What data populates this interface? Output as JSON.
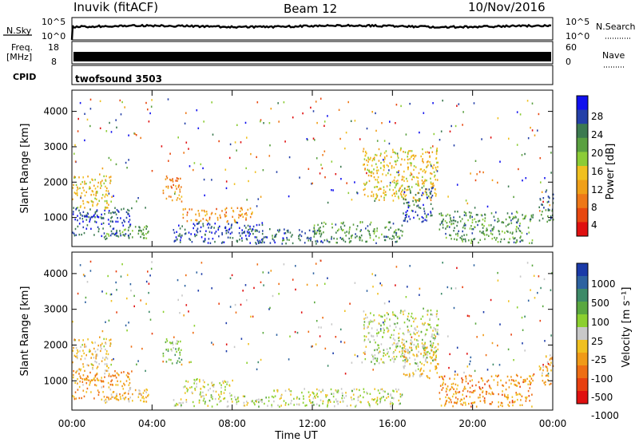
{
  "header": {
    "station": "Inuvik (fitACF)",
    "beam": "Beam 12",
    "date": "10/Nov/2016"
  },
  "strips": {
    "nsky_label": "N.Sky",
    "nsearch_label": "N.Search",
    "noise_ticks_left": [
      "10^5",
      "10^0"
    ],
    "noise_ticks_right": [
      "10^5",
      "10^0"
    ],
    "freq_label_line1": "Freq.",
    "freq_label_line2": "[MHz]",
    "freq_ticks": [
      "18",
      "8"
    ],
    "nave_label": "Nave",
    "nave_ticks": [
      "60",
      "0"
    ],
    "cpid_label": "CPID",
    "cpid_value": "twofsound 3503"
  },
  "colorbars": {
    "power": {
      "label": "Power [dB]",
      "ticks": [
        "28",
        "24",
        "20",
        "16",
        "12",
        "8",
        "4"
      ],
      "colors": [
        "#1010ee",
        "#2440a8",
        "#3c7a50",
        "#5aa040",
        "#8ccc36",
        "#f0c020",
        "#f0a018",
        "#ee7818",
        "#e84810",
        "#e01010"
      ]
    },
    "velocity": {
      "label": "Velocity [m s⁻¹]",
      "ticks": [
        "1000",
        "500",
        "100",
        "25",
        "-25",
        "-100",
        "-500",
        "-1000"
      ],
      "colors": [
        "#1a3aa8",
        "#2d62a0",
        "#3d8a68",
        "#5aa840",
        "#8cd030",
        "#c8c8c8",
        "#f0c020",
        "#f09a18",
        "#ee6e14",
        "#e84010",
        "#e01010"
      ]
    }
  },
  "chart_data": {
    "type": "heatmap",
    "title": "Inuvik (fitACF)  Beam 12  10/Nov/2016",
    "xlabel": "Time UT",
    "ylabel": "Slant Range [km]",
    "xlim": [
      0,
      24
    ],
    "ylim": [
      180,
      4600
    ],
    "x_ticks": [
      "00:00",
      "04:00",
      "08:00",
      "12:00",
      "16:00",
      "20:00",
      "00:00"
    ],
    "y_ticks": [
      "1000",
      "2000",
      "3000",
      "4000"
    ],
    "panels": [
      {
        "name": "Power [dB]",
        "range": [
          0,
          32
        ],
        "regions": [
          {
            "t": [
              0.0,
              3.0
            ],
            "r": [
              500,
              1300
            ],
            "v": 27
          },
          {
            "t": [
              0.0,
              2.0
            ],
            "r": [
              1300,
              2200
            ],
            "v": 14
          },
          {
            "t": [
              1.5,
              3.8
            ],
            "r": [
              400,
              800
            ],
            "v": 21
          },
          {
            "t": [
              4.5,
              5.5
            ],
            "r": [
              1500,
              2200
            ],
            "v": 10
          },
          {
            "t": [
              5.0,
              9.5
            ],
            "r": [
              300,
              900
            ],
            "v": 27
          },
          {
            "t": [
              5.5,
              9.0
            ],
            "r": [
              900,
              1300
            ],
            "v": 10
          },
          {
            "t": [
              9.0,
              12.5
            ],
            "r": [
              280,
              700
            ],
            "v": 25
          },
          {
            "t": [
              12.0,
              16.5
            ],
            "r": [
              300,
              900
            ],
            "v": 22
          },
          {
            "t": [
              14.5,
              18.3
            ],
            "r": [
              1500,
              3000
            ],
            "v": 14
          },
          {
            "t": [
              16.5,
              18.0
            ],
            "r": [
              900,
              1900
            ],
            "v": 26
          },
          {
            "t": [
              18.3,
              23.0
            ],
            "r": [
              300,
              1200
            ],
            "v": 22
          },
          {
            "t": [
              23.3,
              24.0
            ],
            "r": [
              900,
              1800
            ],
            "v": 24
          }
        ]
      },
      {
        "name": "Velocity [m s-1]",
        "range": [
          -1000,
          1000
        ],
        "regions": [
          {
            "t": [
              0.0,
              3.0
            ],
            "r": [
              500,
              1300
            ],
            "v": -350
          },
          {
            "t": [
              0.0,
              2.0
            ],
            "r": [
              1300,
              2200
            ],
            "v": -150
          },
          {
            "t": [
              1.5,
              3.8
            ],
            "r": [
              400,
              800
            ],
            "v": -200
          },
          {
            "t": [
              4.5,
              5.5
            ],
            "r": [
              1500,
              2200
            ],
            "v": 300
          },
          {
            "t": [
              5.5,
              8.0
            ],
            "r": [
              600,
              1100
            ],
            "v": 0
          },
          {
            "t": [
              5.0,
              10.0
            ],
            "r": [
              300,
              600
            ],
            "v": 60
          },
          {
            "t": [
              10.0,
              16.5
            ],
            "r": [
              300,
              800
            ],
            "v": 40
          },
          {
            "t": [
              14.5,
              18.3
            ],
            "r": [
              1500,
              3000
            ],
            "v": 80
          },
          {
            "t": [
              16.5,
              18.3
            ],
            "r": [
              1100,
              2100
            ],
            "v": -180
          },
          {
            "t": [
              18.3,
              23.0
            ],
            "r": [
              300,
              1200
            ],
            "v": -400
          },
          {
            "t": [
              23.3,
              24.0
            ],
            "r": [
              900,
              1800
            ],
            "v": -300
          }
        ]
      }
    ]
  }
}
